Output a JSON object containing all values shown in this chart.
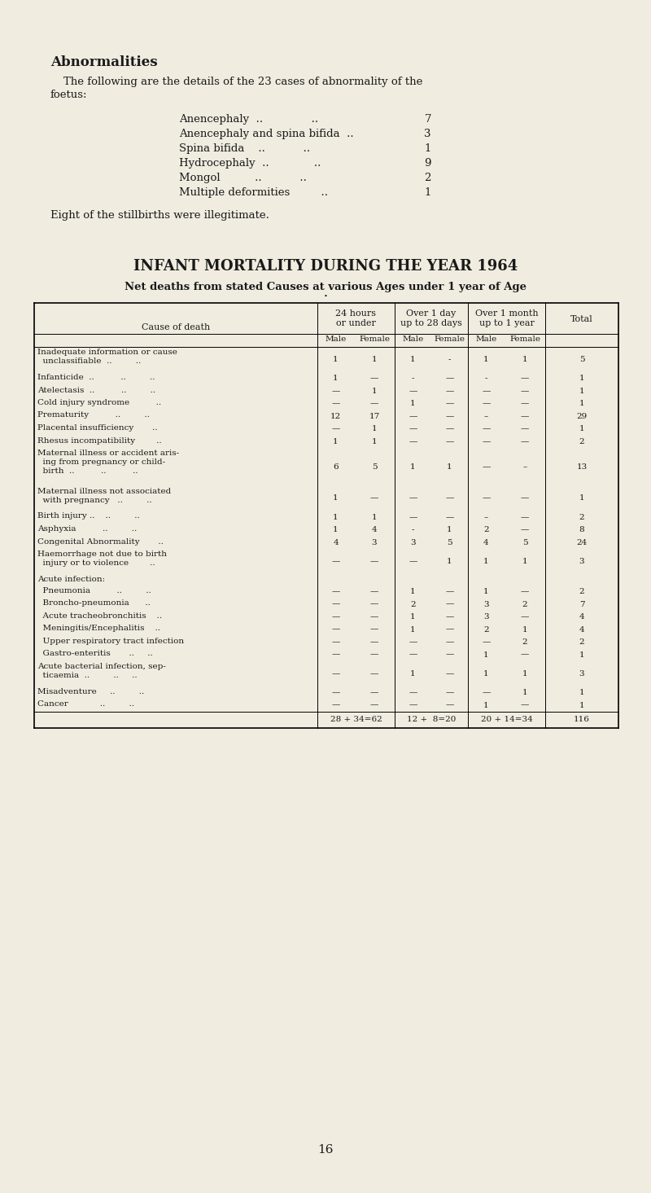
{
  "bg_color": "#f0ece0",
  "text_color": "#1a1a1a",
  "title_section": "Abnormalities",
  "intro_line1": "The following are the details of the 23 cases of abnormality of the",
  "intro_line2": "foetus:",
  "abnormalities": [
    [
      "Anencephaly  ..              ..   ",
      "7"
    ],
    [
      "Anencephaly and spina bifida  ..",
      "3"
    ],
    [
      "Spina bifida    ..           ..  ",
      "1"
    ],
    [
      "Hydrocephaly  ..             ..  ",
      "9"
    ],
    [
      "Mongol          ..           ..  ",
      "2"
    ],
    [
      "Multiple deformities         ..  ",
      "1"
    ]
  ],
  "illegitimate_text": "Eight of the stillbirths were illegitimate.",
  "main_title": "INFANT MORTALITY DURING THE YEAR 1964",
  "subtitle": "Net deaths from stated Causes at various Ages under 1 year of Age",
  "table_rows": [
    {
      "cause": "Inadequate information or cause\n  unclassifiable  ..         ..",
      "vals": [
        "1",
        "1",
        "1",
        "-",
        "1",
        "1",
        "5"
      ]
    },
    {
      "cause": "Infanticide  ..          ..         ..",
      "vals": [
        "1",
        "—",
        "-",
        "—",
        "-",
        "—",
        "1"
      ]
    },
    {
      "cause": "Atelectasis  ..          ..         ..",
      "vals": [
        "—",
        "1",
        "—",
        "—",
        "—",
        "—",
        "1"
      ]
    },
    {
      "cause": "Cold injury syndrome          ..",
      "vals": [
        "—",
        "—",
        "1",
        "—",
        "—",
        "—",
        "1"
      ]
    },
    {
      "cause": "Prematurity          ..         ..",
      "vals": [
        "12",
        "17",
        "—",
        "—",
        "–",
        "—",
        "29"
      ]
    },
    {
      "cause": "Placental insufficiency       ..",
      "vals": [
        "—",
        "1",
        "—",
        "—",
        "—",
        "—",
        "1"
      ]
    },
    {
      "cause": "Rhesus incompatibility        ..",
      "vals": [
        "1",
        "1",
        "—",
        "—",
        "—",
        "—",
        "2"
      ]
    },
    {
      "cause": "Maternal illness or accident aris-\n  ing from pregnancy or child-\n  birth  ..          ..          ..",
      "vals": [
        "6",
        "5",
        "1",
        "1",
        "—",
        "–",
        "13"
      ]
    },
    {
      "cause": "Maternal illness not associated\n  with pregnancy   ..         ..",
      "vals": [
        "1",
        "—",
        "—",
        "—",
        "—",
        "—",
        "1"
      ]
    },
    {
      "cause": "Birth injury ..    ..         ..",
      "vals": [
        "1",
        "1",
        "—",
        "—",
        "–",
        "—",
        "2"
      ]
    },
    {
      "cause": "Asphyxia          ..         ..",
      "vals": [
        "1",
        "4",
        "-",
        "1",
        "2",
        "—",
        "8"
      ]
    },
    {
      "cause": "Congenital Abnormality       ..",
      "vals": [
        "4",
        "3",
        "3",
        "5",
        "4",
        "5",
        "24"
      ]
    },
    {
      "cause": "Haemorrhage not due to birth\n  injury or to violence        ..",
      "vals": [
        "—",
        "—",
        "—",
        "1",
        "1",
        "1",
        "3"
      ]
    },
    {
      "cause": "Acute infection:",
      "vals": [
        "",
        "",
        "",
        "",
        "",
        "",
        ""
      ]
    },
    {
      "cause": "  Pneumonia          ..         ..",
      "vals": [
        "—",
        "—",
        "1",
        "—",
        "1",
        "—",
        "2"
      ]
    },
    {
      "cause": "  Broncho-pneumonia      ..",
      "vals": [
        "—",
        "—",
        "2",
        "—",
        "3",
        "2",
        "7"
      ]
    },
    {
      "cause": "  Acute tracheobronchitis    ..",
      "vals": [
        "—",
        "—",
        "1",
        "—",
        "3",
        "—",
        "4"
      ]
    },
    {
      "cause": "  Meningitis/Encephalitis    ..",
      "vals": [
        "—",
        "—",
        "1",
        "—",
        "2",
        "1",
        "4"
      ]
    },
    {
      "cause": "  Upper respiratory tract infection",
      "vals": [
        "—",
        "—",
        "—",
        "—",
        "—",
        "2",
        "2"
      ]
    },
    {
      "cause": "  Gastro-enteritis       ..     ..",
      "vals": [
        "—",
        "—",
        "—",
        "—",
        "1",
        "—",
        "1"
      ]
    },
    {
      "cause": "Acute bacterial infection, sep-\n  ticaemia  ..         ..     ..",
      "vals": [
        "—",
        "—",
        "1",
        "—",
        "1",
        "1",
        "3"
      ]
    },
    {
      "cause": "Misadventure     ..         ..",
      "vals": [
        "—",
        "—",
        "—",
        "—",
        "—",
        "1",
        "1"
      ]
    },
    {
      "cause": "Cancer            ..         ..",
      "vals": [
        "—",
        "—",
        "—",
        "—",
        "1",
        "—",
        "1"
      ]
    }
  ],
  "footer_row": [
    "28 + 34=62",
    "12 +  8=20",
    "20 + 14=34",
    "116"
  ],
  "page_number": "16",
  "fig_width": 8.0,
  "fig_height": 14.65,
  "dpi": 100
}
